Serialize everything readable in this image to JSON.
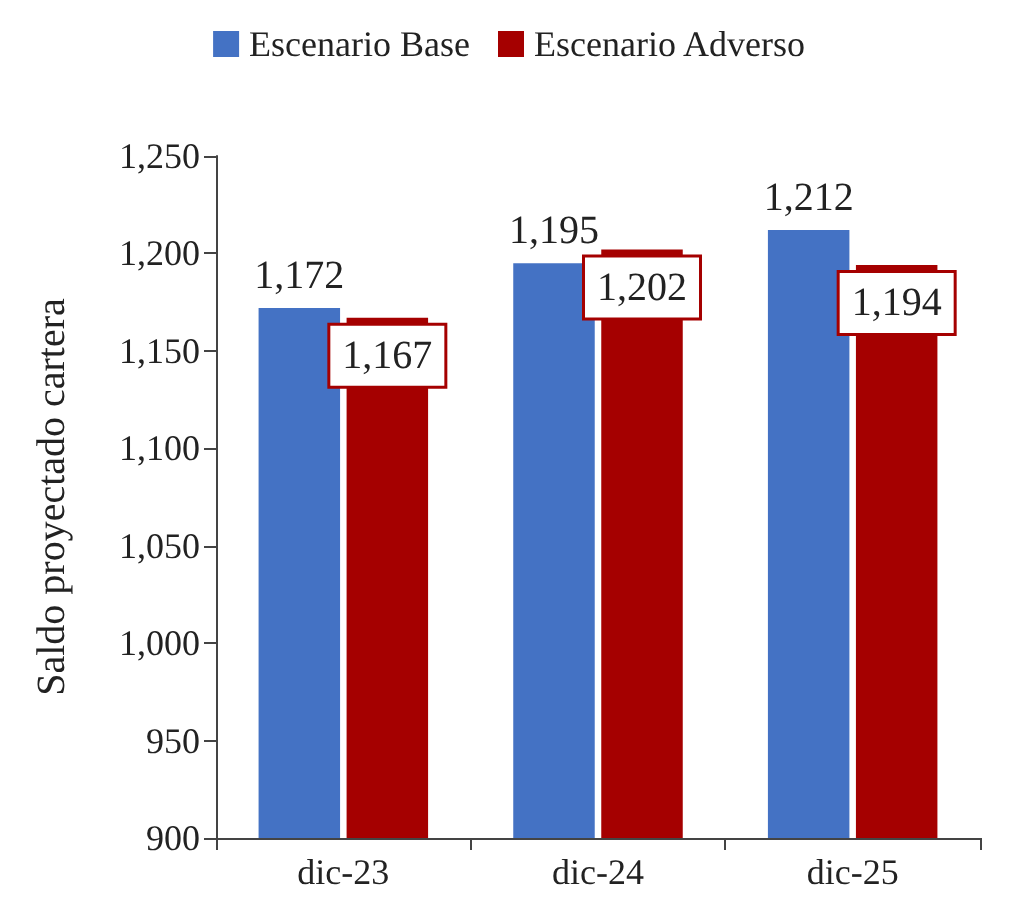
{
  "chart_data": {
    "type": "bar",
    "ylabel": "Saldo proyectado cartera",
    "categories": [
      "dic-23",
      "dic-24",
      "dic-25"
    ],
    "series": [
      {
        "name": "Escenario Base",
        "color": "#4472c4",
        "values": [
          1172,
          1195,
          1212
        ],
        "value_labels": [
          "1,172",
          "1,195",
          "1,212"
        ]
      },
      {
        "name": "Escenario Adverso",
        "color": "#a50000",
        "values": [
          1167,
          1202,
          1194
        ],
        "value_labels": [
          "1,167",
          "1,202",
          "1,194"
        ]
      }
    ],
    "ylim": [
      900,
      1250
    ],
    "yticks": [
      {
        "value": 900,
        "label": "900"
      },
      {
        "value": 950,
        "label": "950"
      },
      {
        "value": 1000,
        "label": "1,000"
      },
      {
        "value": 1050,
        "label": "1,050"
      },
      {
        "value": 1100,
        "label": "1,100"
      },
      {
        "value": 1150,
        "label": "1,150"
      },
      {
        "value": 1200,
        "label": "1,200"
      },
      {
        "value": 1250,
        "label": "1,250"
      }
    ],
    "grid": false,
    "legend": "top"
  }
}
